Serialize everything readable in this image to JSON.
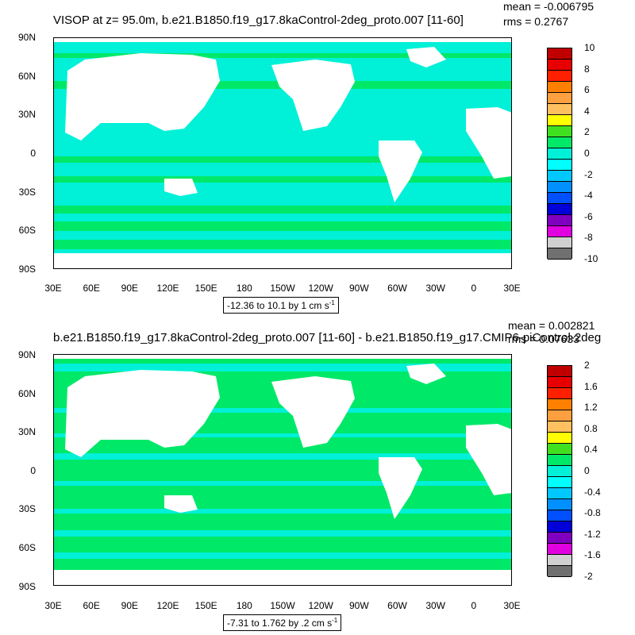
{
  "panels": [
    {
      "title": "VISOP at z=  95.0m, b.e21.B1850.f19_g17.8kaControl-2deg_proto.007 [11-60]",
      "mean": "mean = -0.006795",
      "rms": "rms = 0.2767",
      "range_text": "-12.36 to 10.1 by 1 cm s",
      "range_exp": "-1",
      "colorbar_labels": [
        "10",
        "8",
        "6",
        "4",
        "2",
        "0",
        "-2",
        "-4",
        "-6",
        "-8",
        "-10"
      ]
    },
    {
      "title": "b.e21.B1850.f19_g17.8kaControl-2deg_proto.007 [11-60] - b.e21.B1850.f19_g17.CMIP6-piControl-2deg",
      "mean": "mean = 0.002821",
      "rms": "rms = 0.07633",
      "range_text": "-7.31 to 1.762 by .2 cm s",
      "range_exp": "-1",
      "colorbar_labels": [
        "2",
        "1.6",
        "1.2",
        "0.8",
        "0.4",
        "0",
        "-0.4",
        "-0.8",
        "-1.2",
        "-1.6",
        "-2"
      ]
    }
  ],
  "axes": {
    "lat_ticks": [
      "90N",
      "60N",
      "30N",
      "0",
      "30S",
      "60S",
      "90S"
    ],
    "lon_ticks": [
      "30E",
      "60E",
      "90E",
      "120E",
      "150E",
      "180",
      "150W",
      "120W",
      "90W",
      "60W",
      "30W",
      "0",
      "30E"
    ]
  },
  "colors": {
    "land": "#ffffff",
    "ocean_cyan": "#00f0d8",
    "ocean_green": "#00e868",
    "colorbar": [
      "#c00000",
      "#e80000",
      "#ff2000",
      "#ff8000",
      "#ffa040",
      "#ffc060",
      "#ffff00",
      "#40e020",
      "#00e868",
      "#00f0d8",
      "#00ffff",
      "#00c8ff",
      "#0090ff",
      "#0050ff",
      "#0000d8",
      "#8000c0",
      "#e000e0",
      "#d0d0d0",
      "#707070"
    ]
  }
}
